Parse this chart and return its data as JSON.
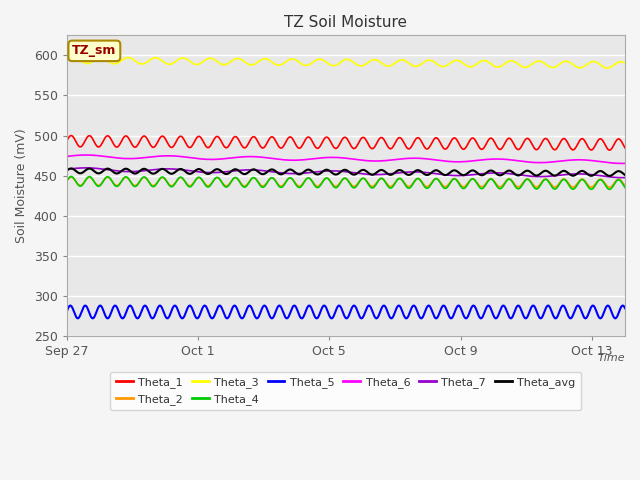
{
  "title": "TZ Soil Moisture",
  "ylabel": "Soil Moisture (mV)",
  "ylim": [
    250,
    625
  ],
  "xlim_days": 17,
  "plot_bg": "#e8e8e8",
  "figure_bg": "#f5f5f5",
  "series_order": [
    "Theta_1",
    "Theta_2",
    "Theta_3",
    "Theta_4",
    "Theta_5",
    "Theta_6",
    "Theta_7",
    "Theta_avg"
  ],
  "series": {
    "Theta_1": {
      "color": "#ff0000",
      "base": 493,
      "amplitude": 7,
      "trend": -0.25,
      "freq": 1.8,
      "lw": 1.2
    },
    "Theta_2": {
      "color": "#ff9900",
      "base": 443,
      "amplitude": 5,
      "trend": -0.15,
      "freq": 1.8,
      "lw": 1.2
    },
    "Theta_3": {
      "color": "#ffff00",
      "base": 594,
      "amplitude": 4,
      "trend": -0.35,
      "freq": 1.2,
      "lw": 1.2
    },
    "Theta_4": {
      "color": "#00cc00",
      "base": 443,
      "amplitude": 6,
      "trend": -0.25,
      "freq": 1.8,
      "lw": 1.2
    },
    "Theta_5": {
      "color": "#0000ff",
      "base": 280,
      "amplitude": 8,
      "trend": 0.0,
      "freq": 2.2,
      "lw": 1.5
    },
    "Theta_6": {
      "color": "#ff00ff",
      "base": 474,
      "amplitude": 2,
      "trend": -0.4,
      "freq": 0.4,
      "lw": 1.2
    },
    "Theta_7": {
      "color": "#9900cc",
      "base": 458,
      "amplitude": 2,
      "trend": -0.5,
      "freq": 0.4,
      "lw": 1.2
    },
    "Theta_avg": {
      "color": "#000000",
      "base": 456,
      "amplitude": 3,
      "trend": -0.2,
      "freq": 1.8,
      "lw": 1.5
    }
  },
  "tick_dates": [
    "Sep 27",
    "Oct 1",
    "Oct 5",
    "Oct 9",
    "Oct 13"
  ],
  "tick_positions": [
    0,
    4,
    8,
    12,
    16
  ],
  "yticks": [
    250,
    300,
    350,
    400,
    450,
    500,
    550,
    600
  ],
  "legend_label": "TZ_sm",
  "legend_bbox_facecolor": "#ffffcc",
  "legend_bbox_edgecolor": "#aa8800",
  "legend_text_color": "#990000"
}
